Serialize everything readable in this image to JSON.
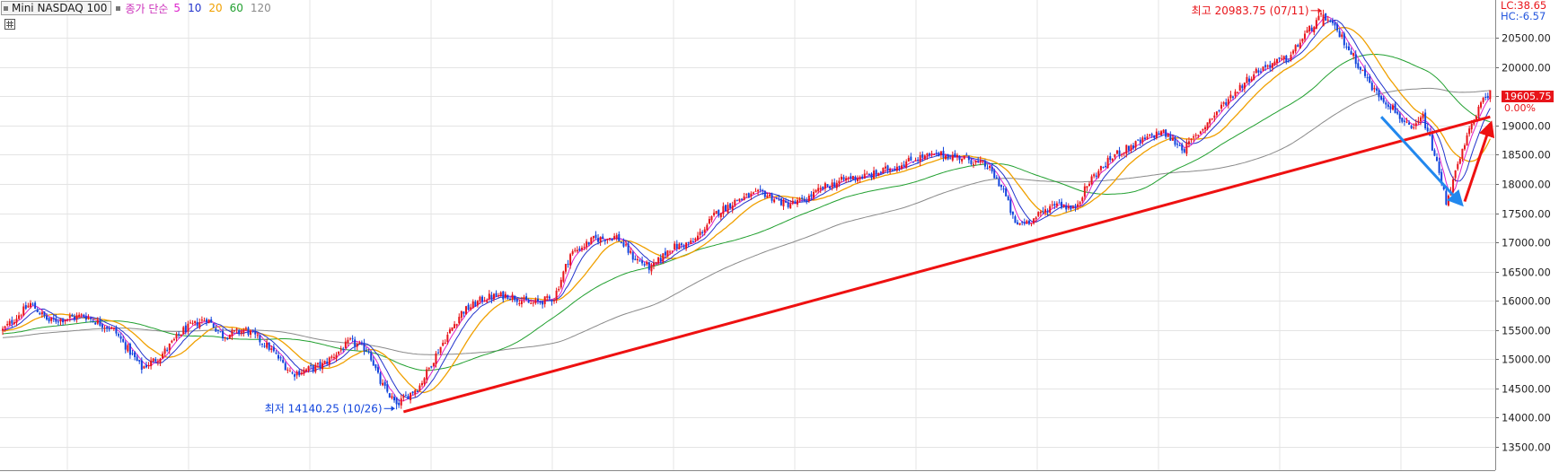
{
  "legend": {
    "symbol": "Mini NASDAQ 100",
    "ma_label": "종가 단순",
    "periods": [
      "5",
      "10",
      "20",
      "60",
      "120"
    ]
  },
  "colors": {
    "up": "#e8141a",
    "down": "#1144dd",
    "ma5": "#dd22cc",
    "ma10": "#2233cc",
    "ma20": "#f0a000",
    "ma60": "#22a030",
    "ma120": "#8a8a8a",
    "trend_up": "#ee1111",
    "trend_down": "#2288ee",
    "lc": "#e8141a",
    "hc": "#2255dd"
  },
  "header_right": {
    "lc": "LC:38.65",
    "hc": "HC:-6.57"
  },
  "annotations": {
    "high": "최고 20983.75 (07/11)",
    "low": "최저 14140.25 (10/26)"
  },
  "current_price": "19605.75",
  "change_pct": "0.00%",
  "chart_data": {
    "type": "candlestick",
    "title": "Mini NASDAQ 100",
    "ylim": [
      13100,
      21150
    ],
    "y_ticks": [
      13500,
      14000,
      14500,
      15000,
      15500,
      16000,
      16500,
      17000,
      17500,
      18000,
      18500,
      19000,
      19500,
      20000,
      20500
    ],
    "y_tick_labels": [
      "13500.00",
      "14000.00",
      "14500.00",
      "15000.00",
      "15500.00",
      "16000.00",
      "16500.00",
      "17000.00",
      "17500.00",
      "18000.00",
      "18500.00",
      "19000.00",
      "19500.00",
      "20000.00",
      "20500.00"
    ],
    "grid": true,
    "high": 20983.75,
    "low": 14140.25,
    "last": 19605.75,
    "close_path": [
      [
        0,
        15500
      ],
      [
        12,
        15950
      ],
      [
        20,
        15650
      ],
      [
        35,
        15750
      ],
      [
        48,
        15500
      ],
      [
        60,
        14850
      ],
      [
        68,
        15050
      ],
      [
        78,
        15500
      ],
      [
        88,
        15700
      ],
      [
        95,
        15400
      ],
      [
        105,
        15500
      ],
      [
        115,
        15200
      ],
      [
        125,
        14750
      ],
      [
        138,
        14900
      ],
      [
        150,
        15300
      ],
      [
        158,
        15150
      ],
      [
        163,
        14600
      ],
      [
        170,
        14220
      ],
      [
        180,
        14550
      ],
      [
        188,
        15150
      ],
      [
        198,
        15800
      ],
      [
        208,
        16050
      ],
      [
        218,
        16100
      ],
      [
        228,
        15950
      ],
      [
        238,
        16050
      ],
      [
        245,
        16800
      ],
      [
        255,
        17050
      ],
      [
        265,
        17100
      ],
      [
        272,
        16750
      ],
      [
        280,
        16550
      ],
      [
        288,
        16900
      ],
      [
        298,
        17000
      ],
      [
        308,
        17500
      ],
      [
        318,
        17750
      ],
      [
        328,
        17850
      ],
      [
        338,
        17650
      ],
      [
        345,
        17700
      ],
      [
        355,
        17950
      ],
      [
        365,
        18100
      ],
      [
        375,
        18150
      ],
      [
        385,
        18300
      ],
      [
        395,
        18450
      ],
      [
        405,
        18500
      ],
      [
        415,
        18450
      ],
      [
        425,
        18300
      ],
      [
        432,
        17900
      ],
      [
        437,
        17300
      ],
      [
        445,
        17400
      ],
      [
        455,
        17700
      ],
      [
        462,
        17550
      ],
      [
        470,
        18100
      ],
      [
        480,
        18500
      ],
      [
        490,
        18700
      ],
      [
        500,
        18900
      ],
      [
        510,
        18600
      ],
      [
        520,
        19050
      ],
      [
        530,
        19500
      ],
      [
        540,
        19900
      ],
      [
        547,
        20050
      ],
      [
        555,
        20150
      ],
      [
        562,
        20550
      ],
      [
        570,
        20900
      ],
      [
        578,
        20500
      ],
      [
        585,
        20050
      ],
      [
        592,
        19600
      ],
      [
        600,
        19300
      ],
      [
        608,
        18900
      ],
      [
        613,
        19150
      ],
      [
        618,
        18500
      ],
      [
        623,
        17700
      ],
      [
        628,
        18300
      ],
      [
        635,
        19150
      ],
      [
        642,
        19605
      ]
    ],
    "series": [
      {
        "name": "5"
      },
      {
        "name": "10"
      },
      {
        "name": "20"
      },
      {
        "name": "60"
      },
      {
        "name": "120"
      }
    ]
  }
}
